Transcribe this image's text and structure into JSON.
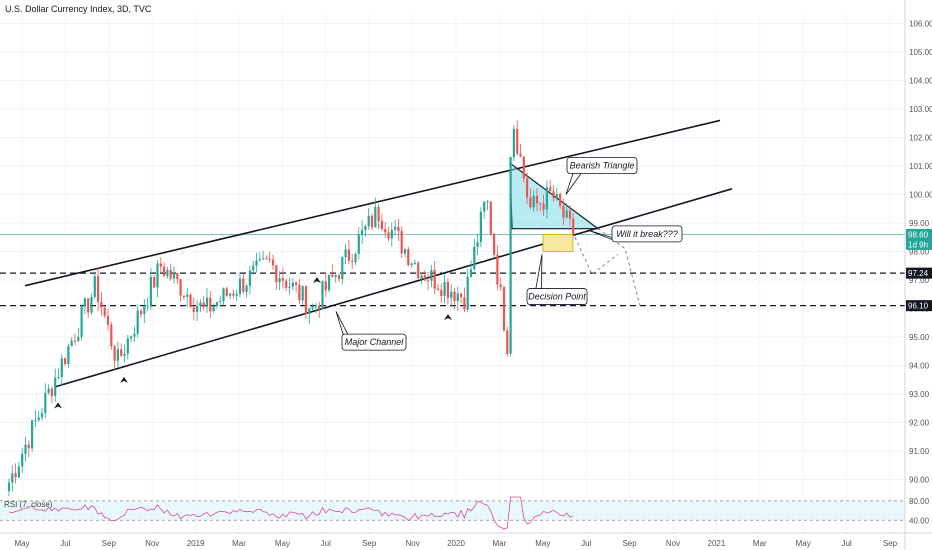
{
  "header": {
    "title": "U.S. Dollar Currency Index, 3D, TVC"
  },
  "rsi": {
    "label": "RSI (7, close)",
    "ticks": [
      "80.00",
      "40.00"
    ]
  },
  "colors": {
    "up": "#26a69a",
    "down": "#ef5350",
    "triangle": "#7fdbe8",
    "decision_box": "#f9e79f",
    "rsi_line": "#d94aa8",
    "rsi_bg": "#e0f7fa"
  },
  "chart_data": {
    "type": "candlestick",
    "title": "U.S. Dollar Currency Index, 3D, TVC",
    "ylim": [
      89.7,
      106.3
    ],
    "y_ticks": [
      "106.00",
      "105.00",
      "104.00",
      "103.00",
      "102.00",
      "101.00",
      "100.00",
      "99.00",
      "98.00",
      "97.00",
      "96.00",
      "95.00",
      "94.00",
      "93.00",
      "92.00",
      "91.00",
      "90.00"
    ],
    "x_ticks": [
      "May",
      "Jul",
      "Sep",
      "Nov",
      "2019",
      "Mar",
      "May",
      "Jul",
      "Sep",
      "Nov",
      "2020",
      "Mar",
      "May",
      "Jul",
      "Sep",
      "Nov",
      "2021",
      "Mar",
      "May",
      "Jul",
      "Sep"
    ],
    "price_tags": [
      {
        "label": "98.60",
        "value": 98.6,
        "color": "#26a69a"
      },
      {
        "label": "1d 9h",
        "value": 98.25,
        "color": "#26a69a"
      },
      {
        "label": "97.24",
        "value": 97.24,
        "color": "#131722"
      },
      {
        "label": "96.10",
        "value": 96.1,
        "color": "#131722"
      }
    ],
    "horizontal_levels": [
      97.24,
      96.1
    ],
    "current_price": 98.6,
    "key_points": [
      {
        "x": "2018-04",
        "y": 89.9
      },
      {
        "x": "2018-08",
        "y": 96.8
      },
      {
        "x": "2018-09",
        "y": 94.1
      },
      {
        "x": "2018-11",
        "y": 97.5
      },
      {
        "x": "2019-01",
        "y": 95.9
      },
      {
        "x": "2019-04",
        "y": 97.6
      },
      {
        "x": "2019-06",
        "y": 96.0
      },
      {
        "x": "2019-09",
        "y": 99.4
      },
      {
        "x": "2019-11",
        "y": 97.3
      },
      {
        "x": "2020-01",
        "y": 96.4
      },
      {
        "x": "2020-02",
        "y": 99.9
      },
      {
        "x": "2020-03",
        "y": 94.6
      },
      {
        "x": "2020-03",
        "y": 103.0
      },
      {
        "x": "2020-04",
        "y": 99.5
      },
      {
        "x": "2020-05",
        "y": 100.0
      },
      {
        "x": "2020-06",
        "y": 98.6
      }
    ],
    "rsi": {
      "period": 7,
      "upper": 80,
      "lower": 40
    },
    "annotations": [
      "Bearish Triangle",
      "Will it break???",
      "Decision Point",
      "Major Channel"
    ]
  },
  "annotations": {
    "bearish_triangle": "Bearish Triangle",
    "will_it_break": "Will it break???",
    "decision_point": "Decision Point",
    "major_channel": "Major Channel"
  }
}
